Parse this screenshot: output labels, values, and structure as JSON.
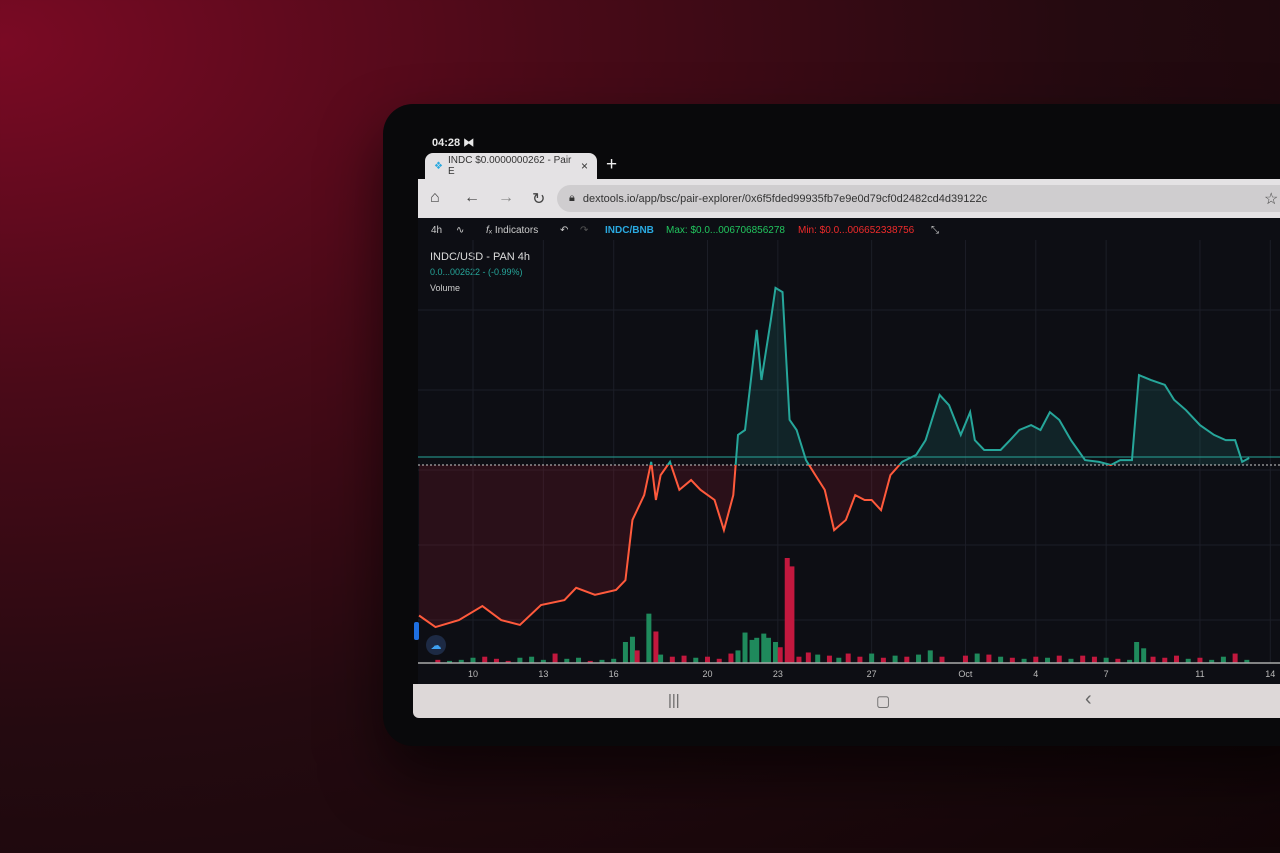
{
  "status_bar": {
    "time": "04:28",
    "icon": "notification-icon"
  },
  "browser": {
    "tab_title": "INDC $0.0000000262 - Pair E",
    "tab_icon": "dextools-logo-icon",
    "url": "dextools.io/app/bsc/pair-explorer/0x6f5fded99935fb7e9e0d79cf0d2482cd4d39122c",
    "new_tab": "+",
    "close": "×"
  },
  "toolbar": {
    "interval": "4h",
    "indicators": "Indicators",
    "pair": "INDC/BNB",
    "max": "Max: $0.0...006706856278",
    "min": "Min: $0.0...006652338756"
  },
  "legend": {
    "symbol": "INDC/USD - PAN  4h",
    "price": "0.0...002622 - (-0.99%)",
    "volume": "Volume"
  },
  "colors": {
    "up": "#26a69a",
    "down": "#ff5a3c",
    "vol_up": "#1f8a5c",
    "vol_down": "#c2183e",
    "pair": "#2aa9e0",
    "max": "#22c55e",
    "min": "#ef2b2b"
  },
  "chart_data": {
    "type": "line",
    "x_ticks": [
      "10",
      "13",
      "16",
      "20",
      "23",
      "27",
      "Oct",
      "4",
      "7",
      "11",
      "14"
    ],
    "reference_value": 50,
    "price": [
      [
        "Sep 7.7",
        7
      ],
      [
        "Sep 8.4",
        3.7
      ],
      [
        "Sep 9.4",
        5.7
      ],
      [
        "Sep 10.4",
        9.7
      ],
      [
        "Sep 11.2",
        5.7
      ],
      [
        "Sep 12.0",
        4.3
      ],
      [
        "Sep 12.9",
        10
      ],
      [
        "Sep 13.9",
        11.4
      ],
      [
        "Sep 14.4",
        14.9
      ],
      [
        "Sep 15.2",
        12.9
      ],
      [
        "Sep 16.1",
        14.3
      ],
      [
        "Sep 16.5",
        17.1
      ],
      [
        "Sep 16.8",
        34.3
      ],
      [
        "Sep 17.3",
        41.4
      ],
      [
        "Sep 17.6",
        50.9
      ],
      [
        "Sep 17.8",
        40
      ],
      [
        "Sep 18.0",
        47.1
      ],
      [
        "Sep 18.4",
        50.9
      ],
      [
        "Sep 18.8",
        42.9
      ],
      [
        "Sep 19.3",
        45.7
      ],
      [
        "Sep 19.7",
        42.9
      ],
      [
        "Sep 20.3",
        40
      ],
      [
        "Sep 20.7",
        31.4
      ],
      [
        "Sep 21.1",
        41.4
      ],
      [
        "Sep 21.3",
        58.6
      ],
      [
        "Sep 21.6",
        60
      ],
      [
        "Sep 21.9",
        77.1
      ],
      [
        "Sep 22.1",
        88.6
      ],
      [
        "Sep 22.3",
        74.3
      ],
      [
        "Sep 22.7",
        91.4
      ],
      [
        "Sep 22.9",
        100.6
      ],
      [
        "Sep 23.2",
        99.4
      ],
      [
        "Sep 23.5",
        62.9
      ],
      [
        "Sep 23.8",
        60
      ],
      [
        "Sep 24.2",
        51.4
      ],
      [
        "Sep 24.6",
        47.1
      ],
      [
        "Sep 25.0",
        42.9
      ],
      [
        "Sep 25.4",
        31.4
      ],
      [
        "Sep 25.9",
        34.3
      ],
      [
        "Sep 26.3",
        41.4
      ],
      [
        "Sep 26.7",
        40
      ],
      [
        "Sep 27.0",
        40
      ],
      [
        "Sep 27.4",
        37.1
      ],
      [
        "Sep 27.8",
        47.1
      ],
      [
        "Sep 28.3",
        50.9
      ],
      [
        "Sep 28.9",
        52.9
      ],
      [
        "Sep 29.3",
        57.1
      ],
      [
        "Sep 29.9",
        70
      ],
      [
        "Sep 30.3",
        67.1
      ],
      [
        "Sep 30.8",
        58.6
      ],
      [
        "Oct 1.2",
        65.1
      ],
      [
        "Oct 1.4",
        57.1
      ],
      [
        "Oct 1.8",
        54.3
      ],
      [
        "Oct 2.5",
        54.3
      ],
      [
        "Oct 2.9",
        57.1
      ],
      [
        "Oct 3.3",
        60
      ],
      [
        "Oct 3.8",
        61.4
      ],
      [
        "Oct 4.2",
        60
      ],
      [
        "Oct 4.6",
        65.1
      ],
      [
        "Oct 5.0",
        62.9
      ],
      [
        "Oct 5.5",
        57.1
      ],
      [
        "Oct 6.1",
        51.4
      ],
      [
        "Oct 6.7",
        50.9
      ],
      [
        "Oct 7.2",
        50
      ],
      [
        "Oct 7.6",
        51.4
      ],
      [
        "Oct 8.1",
        51.4
      ],
      [
        "Oct 8.4",
        75.7
      ],
      [
        "Oct 8.9",
        74.3
      ],
      [
        "Oct 9.5",
        72.9
      ],
      [
        "Oct 9.9",
        68.6
      ],
      [
        "Oct 10.4",
        65.7
      ],
      [
        "Oct 11.0",
        61.4
      ],
      [
        "Oct 11.6",
        58.6
      ],
      [
        "Oct 12.1",
        57.1
      ],
      [
        "Oct 12.5",
        57.1
      ],
      [
        "Oct 12.8",
        50.9
      ],
      [
        "Oct 13.1",
        52
      ]
    ],
    "volume": [
      [
        "Sep 8.5",
        3,
        "d"
      ],
      [
        "Sep 9",
        2,
        "u"
      ],
      [
        "Sep 9.5",
        3,
        "u"
      ],
      [
        "Sep 10",
        5,
        "u"
      ],
      [
        "Sep 10.5",
        6,
        "d"
      ],
      [
        "Sep 11",
        4,
        "d"
      ],
      [
        "Sep 11.5",
        2,
        "d"
      ],
      [
        "Sep 12",
        5,
        "u"
      ],
      [
        "Sep 12.5",
        6,
        "u"
      ],
      [
        "Sep 13",
        3,
        "u"
      ],
      [
        "Sep 13.5",
        9,
        "d"
      ],
      [
        "Sep 14",
        4,
        "u"
      ],
      [
        "Sep 14.5",
        5,
        "u"
      ],
      [
        "Sep 15",
        2,
        "d"
      ],
      [
        "Sep 15.5",
        3,
        "u"
      ],
      [
        "Sep 16",
        4,
        "u"
      ],
      [
        "Sep 16.5",
        20,
        "u"
      ],
      [
        "Sep 16.8",
        25,
        "u"
      ],
      [
        "Sep 17",
        12,
        "d"
      ],
      [
        "Sep 17.5",
        47,
        "u"
      ],
      [
        "Sep 17.8",
        30,
        "d"
      ],
      [
        "Sep 18",
        8,
        "u"
      ],
      [
        "Sep 18.5",
        6,
        "d"
      ],
      [
        "Sep 19",
        7,
        "d"
      ],
      [
        "Sep 19.5",
        5,
        "u"
      ],
      [
        "Sep 20",
        6,
        "d"
      ],
      [
        "Sep 20.5",
        4,
        "d"
      ],
      [
        "Sep 21",
        9,
        "d"
      ],
      [
        "Sep 21.3",
        12,
        "u"
      ],
      [
        "Sep 21.6",
        29,
        "u"
      ],
      [
        "Sep 21.9",
        22,
        "u"
      ],
      [
        "Sep 22.1",
        24,
        "u"
      ],
      [
        "Sep 22.4",
        28,
        "u"
      ],
      [
        "Sep 22.6",
        24,
        "u"
      ],
      [
        "Sep 22.9",
        20,
        "u"
      ],
      [
        "Sep 23.1",
        15,
        "d"
      ],
      [
        "Sep 23.4",
        100,
        "d"
      ],
      [
        "Sep 23.6",
        92,
        "d"
      ],
      [
        "Sep 23.9",
        6,
        "d"
      ],
      [
        "Sep 24.3",
        10,
        "d"
      ],
      [
        "Sep 24.7",
        8,
        "u"
      ],
      [
        "Sep 25.2",
        7,
        "d"
      ],
      [
        "Sep 25.6",
        5,
        "u"
      ],
      [
        "Sep 26",
        9,
        "d"
      ],
      [
        "Sep 26.5",
        6,
        "d"
      ],
      [
        "Sep 27",
        9,
        "u"
      ],
      [
        "Sep 27.5",
        5,
        "d"
      ],
      [
        "Sep 28",
        7,
        "u"
      ],
      [
        "Sep 28.5",
        6,
        "d"
      ],
      [
        "Sep 29",
        8,
        "u"
      ],
      [
        "Sep 29.5",
        12,
        "u"
      ],
      [
        "Sep 30",
        6,
        "d"
      ],
      [
        "Oct 1",
        7,
        "d"
      ],
      [
        "Oct 1.5",
        9,
        "u"
      ],
      [
        "Oct 2",
        8,
        "d"
      ],
      [
        "Oct 2.5",
        6,
        "u"
      ],
      [
        "Oct 3",
        5,
        "d"
      ],
      [
        "Oct 3.5",
        4,
        "u"
      ],
      [
        "Oct 4",
        6,
        "d"
      ],
      [
        "Oct 4.5",
        5,
        "u"
      ],
      [
        "Oct 5",
        7,
        "d"
      ],
      [
        "Oct 5.5",
        4,
        "u"
      ],
      [
        "Oct 6",
        7,
        "d"
      ],
      [
        "Oct 6.5",
        6,
        "d"
      ],
      [
        "Oct 7",
        5,
        "u"
      ],
      [
        "Oct 7.5",
        4,
        "d"
      ],
      [
        "Oct 8",
        3,
        "u"
      ],
      [
        "Oct 8.3",
        20,
        "u"
      ],
      [
        "Oct 8.6",
        14,
        "u"
      ],
      [
        "Oct 9",
        6,
        "d"
      ],
      [
        "Oct 9.5",
        5,
        "d"
      ],
      [
        "Oct 10",
        7,
        "d"
      ],
      [
        "Oct 10.5",
        4,
        "u"
      ],
      [
        "Oct 11",
        5,
        "d"
      ],
      [
        "Oct 11.5",
        3,
        "u"
      ],
      [
        "Oct 12",
        6,
        "u"
      ],
      [
        "Oct 12.5",
        9,
        "d"
      ],
      [
        "Oct 13",
        3,
        "u"
      ]
    ]
  },
  "nav": {
    "recents": "|||",
    "home": "▢",
    "back": "‹"
  }
}
